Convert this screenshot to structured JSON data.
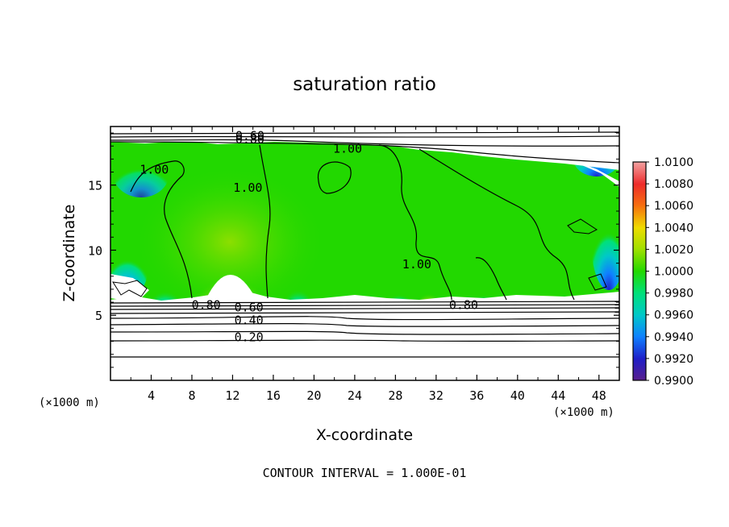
{
  "chart_data": {
    "type": "heatmap",
    "title": "saturation ratio",
    "xlabel": "X-coordinate",
    "ylabel": "Z-coordinate",
    "x_unit_left": "(×1000 m)",
    "x_unit_right": "(×1000 m)",
    "xlim": [
      0,
      50
    ],
    "ylim": [
      0,
      19.5
    ],
    "x_ticks": [
      4,
      8,
      12,
      16,
      20,
      24,
      28,
      32,
      36,
      40,
      44,
      48
    ],
    "y_ticks": [
      5,
      10,
      15
    ],
    "colorbar": {
      "levels": [
        "1.0100",
        "1.0080",
        "1.0060",
        "1.0040",
        "1.0020",
        "1.0000",
        "0.9980",
        "0.9960",
        "0.9940",
        "0.9920",
        "0.9900"
      ],
      "colors": [
        "#f2a2a2",
        "#ee2b2b",
        "#f6700f",
        "#efdc00",
        "#9fe000",
        "#22d800",
        "#00e07a",
        "#00c8c8",
        "#0f80ff",
        "#1e1ec8",
        "#5a1e8c"
      ]
    },
    "contour_labels": [
      {
        "text": "0.60",
        "x": 13.7,
        "y": 18.8
      },
      {
        "text": "0.80",
        "x": 13.7,
        "y": 18.5
      },
      {
        "text": "1.00",
        "x": 4.3,
        "y": 16.2
      },
      {
        "text": "1.00",
        "x": 13.5,
        "y": 14.8
      },
      {
        "text": "1.00",
        "x": 23.3,
        "y": 17.8
      },
      {
        "text": "1.00",
        "x": 30.1,
        "y": 8.9
      },
      {
        "text": "0.80",
        "x": 9.4,
        "y": 5.8
      },
      {
        "text": "0.60",
        "x": 13.6,
        "y": 5.6
      },
      {
        "text": "0.80",
        "x": 34.7,
        "y": 5.8
      },
      {
        "text": "0.40",
        "x": 13.6,
        "y": 4.6
      },
      {
        "text": "0.20",
        "x": 13.6,
        "y": 3.3
      }
    ],
    "footer": "CONTOUR INTERVAL = 1.000E-01"
  }
}
